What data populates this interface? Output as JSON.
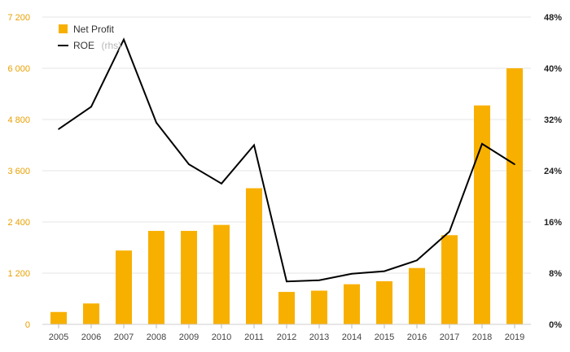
{
  "chart_data": {
    "type": "bar+line",
    "categories": [
      "2005",
      "2006",
      "2007",
      "2008",
      "2009",
      "2010",
      "2011",
      "2012",
      "2013",
      "2014",
      "2015",
      "2016",
      "2017",
      "2018",
      "2019"
    ],
    "series": [
      {
        "name": "Net Profit",
        "type": "bar",
        "axis": "left",
        "color": "#f8b000",
        "values": [
          290,
          490,
          1730,
          2190,
          2190,
          2330,
          3190,
          760,
          790,
          940,
          1010,
          1320,
          2090,
          5130,
          6000
        ]
      },
      {
        "name": "ROE",
        "type": "line",
        "axis": "right",
        "color": "#000000",
        "unit": "%",
        "values": [
          30.5,
          34.0,
          44.5,
          31.5,
          25.0,
          22.0,
          28.0,
          6.7,
          6.9,
          7.9,
          8.3,
          10.0,
          14.5,
          28.2,
          25.0
        ]
      }
    ],
    "legend": {
      "items": [
        {
          "label": "Net Profit",
          "note": ""
        },
        {
          "label": "ROE",
          "note": "(rhs)"
        }
      ],
      "placement": "top-left"
    },
    "y_left": {
      "ylim": [
        0,
        7200
      ],
      "ticks": [
        0,
        1200,
        2400,
        3600,
        4800,
        6000,
        7200
      ],
      "tick_labels": [
        "0",
        "1 200",
        "2 400",
        "3 600",
        "4 800",
        "6 000",
        "7 200"
      ],
      "color": "#e8a000"
    },
    "y_right": {
      "ylim": [
        0,
        48
      ],
      "ticks": [
        0,
        8,
        16,
        24,
        32,
        40,
        48
      ],
      "tick_labels": [
        "0%",
        "8%",
        "16%",
        "24%",
        "32%",
        "40%",
        "48%"
      ]
    },
    "grid": true
  }
}
